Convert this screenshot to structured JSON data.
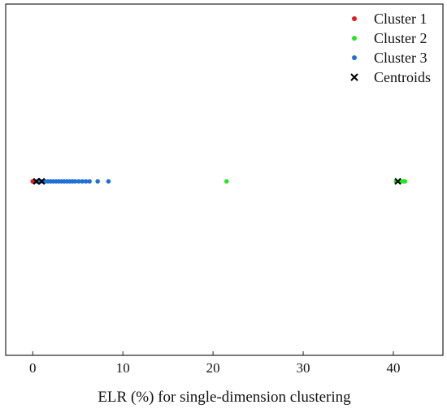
{
  "chart_data": {
    "type": "scatter",
    "title": "",
    "xlabel": "ELR (%) for single-dimension clustering",
    "ylabel": "",
    "xlim": [
      -3,
      45.5
    ],
    "xticks": [
      0,
      10,
      20,
      30,
      40
    ],
    "xtick_labels": [
      "0",
      "10",
      "20",
      "30",
      "40"
    ],
    "grid": false,
    "legend_position": "top-right",
    "series": [
      {
        "name": "Cluster 1",
        "color": "#e41a1c",
        "marker": "dot",
        "x": [
          0.0,
          0.05,
          0.1,
          0.15,
          0.2
        ],
        "y": [
          0,
          0,
          0,
          0,
          0
        ]
      },
      {
        "name": "Cluster 2",
        "color": "#22e622",
        "marker": "dot",
        "x": [
          21.5,
          40.3,
          40.8,
          41.1,
          41.3
        ],
        "y": [
          0,
          0,
          0,
          0,
          0
        ]
      },
      {
        "name": "Cluster 3",
        "color": "#1f6fd6",
        "marker": "dot",
        "x": [
          0.5,
          0.8,
          1.1,
          1.4,
          1.7,
          2.0,
          2.3,
          2.6,
          2.9,
          3.2,
          3.5,
          3.8,
          4.1,
          4.4,
          4.7,
          5.1,
          5.5,
          5.9,
          6.3,
          7.2,
          8.4
        ],
        "y": [
          0,
          0,
          0,
          0,
          0,
          0,
          0,
          0,
          0,
          0,
          0,
          0,
          0,
          0,
          0,
          0,
          0,
          0,
          0,
          0,
          0
        ]
      },
      {
        "name": "Centroids",
        "color": "#000000",
        "marker": "x",
        "x": [
          0.4,
          1.0,
          40.5
        ],
        "y": [
          0,
          0,
          0
        ]
      }
    ]
  }
}
